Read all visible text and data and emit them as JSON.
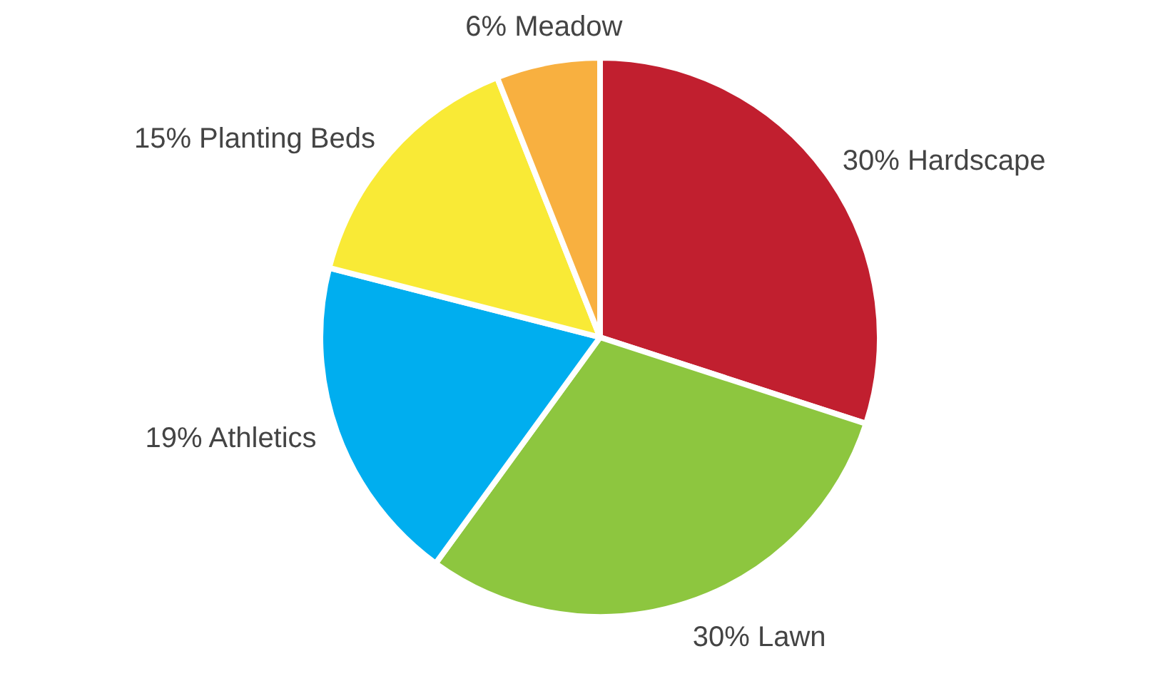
{
  "chart_data": {
    "type": "pie",
    "categories": [
      "Hardscape",
      "Lawn",
      "Athletics",
      "Planting Beds",
      "Meadow"
    ],
    "values": [
      30,
      30,
      19,
      15,
      6
    ],
    "value_labels": [
      "30%",
      "30%",
      "19%",
      "15%",
      "6%"
    ],
    "colors": [
      "#c11f2f",
      "#8dc63f",
      "#00aeef",
      "#f9ea36",
      "#f8b040"
    ]
  }
}
